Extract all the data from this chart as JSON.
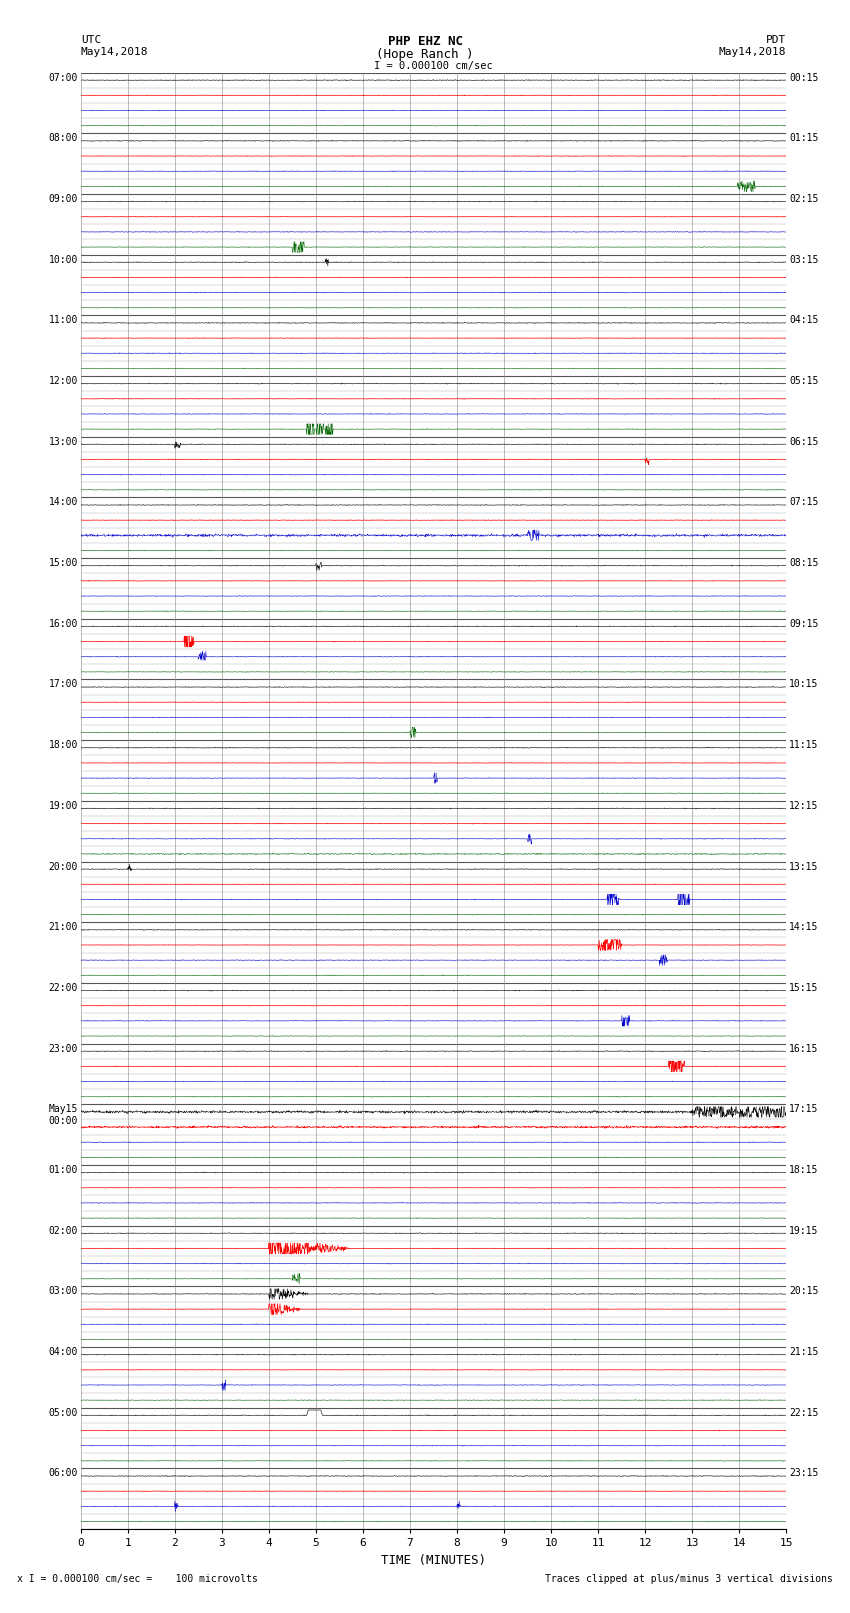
{
  "title_line1": "PHP EHZ NC",
  "title_line2": "(Hope Ranch )",
  "title_line3": "I = 0.000100 cm/sec",
  "left_header_line1": "UTC",
  "left_header_line2": "May14,2018",
  "right_header_line1": "PDT",
  "right_header_line2": "May14,2018",
  "xlabel": "TIME (MINUTES)",
  "footer_left": "x I = 0.000100 cm/sec =    100 microvolts",
  "footer_right": "Traces clipped at plus/minus 3 vertical divisions",
  "utc_labels": [
    "07:00",
    "08:00",
    "09:00",
    "10:00",
    "11:00",
    "12:00",
    "13:00",
    "14:00",
    "15:00",
    "16:00",
    "17:00",
    "18:00",
    "19:00",
    "20:00",
    "21:00",
    "22:00",
    "23:00",
    "May15\n00:00",
    "01:00",
    "02:00",
    "03:00",
    "04:00",
    "05:00",
    "06:00"
  ],
  "pdt_labels": [
    "00:15",
    "01:15",
    "02:15",
    "03:15",
    "04:15",
    "05:15",
    "06:15",
    "07:15",
    "08:15",
    "09:15",
    "10:15",
    "11:15",
    "12:15",
    "13:15",
    "14:15",
    "15:15",
    "16:15",
    "17:15",
    "18:15",
    "19:15",
    "20:15",
    "21:15",
    "22:15",
    "23:15"
  ],
  "n_hours": 24,
  "traces_per_hour": 4,
  "n_minutes": 15,
  "bg_color": "#ffffff",
  "trace_colors": [
    "#000000",
    "#ff0000",
    "#0000cc",
    "#006600"
  ],
  "grid_major_color": "#aaaaaa",
  "grid_minor_color": "#cccccc"
}
